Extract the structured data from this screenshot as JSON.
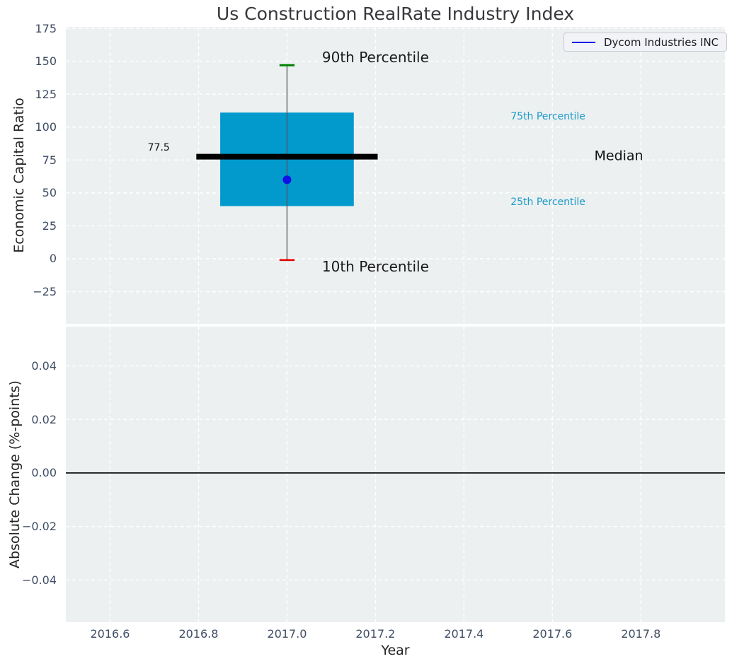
{
  "style": {
    "page_bg": "#ffffff",
    "plot_bg": "#ecf0f1",
    "grid_color": "#ffffff",
    "tick_label_color": "#3e4d63",
    "text_color": "#232323"
  },
  "chart_data": [
    {
      "type": "box",
      "title": "Us Construction RealRate Industry Index",
      "ylabel": "Economic Capital Ratio",
      "xlim": [
        2016.5,
        2017.99
      ],
      "ylim": [
        -49.4,
        176.1
      ],
      "grid": "white-dashed",
      "yticks": {
        "values": [
          175,
          150,
          125,
          100,
          75,
          50,
          25,
          0,
          -25
        ],
        "labels": [
          "175",
          "150",
          "125",
          "100",
          "75",
          "50",
          "25",
          "0",
          "−25"
        ]
      },
      "legend": {
        "label": "Dycom Industries INC",
        "line_color": "#0000e6",
        "position": "upper right"
      },
      "box": {
        "x": 2017.0,
        "p10": -1,
        "p25": 40,
        "median": 77.5,
        "p75": 111,
        "p90": 147,
        "box_half_width_years": 0.151,
        "median_half_width_years": 0.205,
        "cap_half_width_years": 0.017,
        "fill": "#0299cd",
        "median_color": "#000000",
        "whisker_color": "#55555d",
        "cap_high_color": "#008000",
        "cap_low_color": "#e60000"
      },
      "company_point": {
        "label": "Dycom Industries INC",
        "x": 2017.0,
        "value": 60,
        "color": "#1111e6"
      },
      "annotations": [
        {
          "id": "90th-percentile-label",
          "text": "90th Percentile",
          "x": 2017.2,
          "y": 153,
          "color": "#1a1a1a",
          "font_size": 20
        },
        {
          "id": "10th-percentile-label",
          "text": "10th Percentile",
          "x": 2017.2,
          "y": -6,
          "color": "#1a1a1a",
          "font_size": 20
        },
        {
          "id": "75th-percentile-label",
          "text": "75th Percentile",
          "x": 2017.59,
          "y": 108.4,
          "color": "#1d9bc9",
          "font_size": 14
        },
        {
          "id": "25th-percentile-label",
          "text": "25th Percentile",
          "x": 2017.59,
          "y": 43.5,
          "color": "#1d9bc9",
          "font_size": 14
        },
        {
          "id": "median-label",
          "text": "Median",
          "x": 2017.75,
          "y": 78.4,
          "color": "#141414",
          "font_size": 19
        },
        {
          "id": "median-value-label",
          "text": "77.5",
          "x": 2016.71,
          "y": 84.8,
          "color": "#141414",
          "font_size": 14
        }
      ]
    },
    {
      "type": "line",
      "ylabel": "Absolute Change (%-points)",
      "xlabel": "Year",
      "xlim": [
        2016.5,
        2017.99
      ],
      "ylim": [
        -0.0558,
        0.0547
      ],
      "grid": "white-dashed",
      "yticks": {
        "values": [
          0.04,
          0.02,
          0,
          -0.02,
          -0.04
        ],
        "labels": [
          "0.04",
          "0.02",
          "0.00",
          "−0.02",
          "−0.04"
        ]
      },
      "xticks": {
        "values": [
          2016.6,
          2016.8,
          2017.0,
          2017.2,
          2017.4,
          2017.6,
          2017.8
        ],
        "labels": [
          "2016.6",
          "2016.8",
          "2017.0",
          "2017.2",
          "2017.4",
          "2017.6",
          "2017.8"
        ]
      },
      "zero_line": {
        "value": 0,
        "color": "#000000"
      },
      "series": []
    }
  ]
}
